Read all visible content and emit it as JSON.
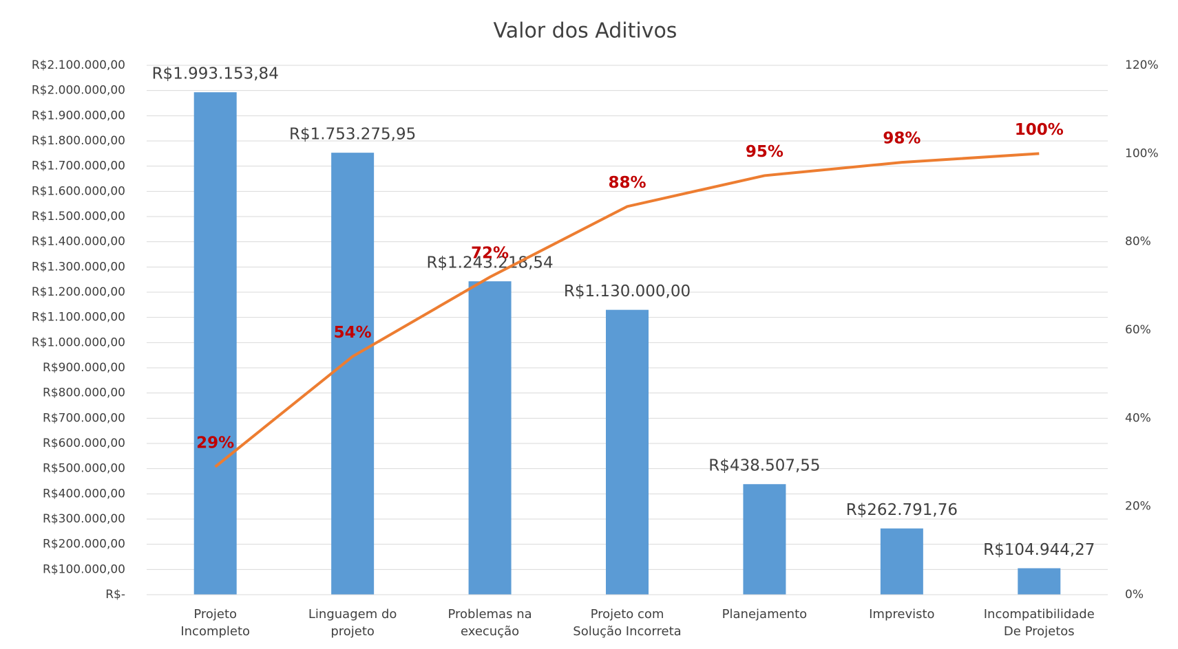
{
  "chart_data": {
    "type": "pareto",
    "title": "Valor dos Aditivos",
    "categories": [
      "Projeto\nIncompleto",
      "Linguagem do\nprojeto",
      "Problemas na\nexecução",
      "Projeto com\nSolução Incorreta",
      "Planejamento",
      "Imprevisto",
      "Incompatibilidade\nDe Projetos"
    ],
    "series": [
      {
        "type": "bar",
        "color": "#5b9bd5",
        "values": [
          1993153.84,
          1753275.95,
          1243218.54,
          1130000,
          438507.55,
          262791.76,
          104944.27
        ],
        "value_labels": [
          "R$1.993.153,84",
          "R$1.753.275,95",
          "R$1.243.218,54",
          "R$1.130.000,00",
          "R$438.507,55",
          "R$262.791,76",
          "R$104.944,27"
        ]
      },
      {
        "type": "line",
        "axis": "y2",
        "color": "#ed7d31",
        "values": [
          29,
          54,
          72,
          88,
          95,
          98,
          100
        ],
        "value_labels": [
          "29%",
          "54%",
          "72%",
          "88%",
          "95%",
          "98%",
          "100%"
        ]
      }
    ],
    "ylim": [
      0,
      2100000
    ],
    "yticks": [
      {
        "value": 0,
        "label": "R$-"
      },
      {
        "value": 100000,
        "label": "R$100.000,00"
      },
      {
        "value": 200000,
        "label": "R$200.000,00"
      },
      {
        "value": 300000,
        "label": "R$300.000,00"
      },
      {
        "value": 400000,
        "label": "R$400.000,00"
      },
      {
        "value": 500000,
        "label": "R$500.000,00"
      },
      {
        "value": 600000,
        "label": "R$600.000,00"
      },
      {
        "value": 700000,
        "label": "R$700.000,00"
      },
      {
        "value": 800000,
        "label": "R$800.000,00"
      },
      {
        "value": 900000,
        "label": "R$900.000,00"
      },
      {
        "value": 1000000,
        "label": "R$1.000.000,00"
      },
      {
        "value": 1100000,
        "label": "R$1.100.000,00"
      },
      {
        "value": 1200000,
        "label": "R$1.200.000,00"
      },
      {
        "value": 1300000,
        "label": "R$1.300.000,00"
      },
      {
        "value": 1400000,
        "label": "R$1.400.000,00"
      },
      {
        "value": 1500000,
        "label": "R$1.500.000,00"
      },
      {
        "value": 1600000,
        "label": "R$1.600.000,00"
      },
      {
        "value": 1700000,
        "label": "R$1.700.000,00"
      },
      {
        "value": 1800000,
        "label": "R$1.800.000,00"
      },
      {
        "value": 1900000,
        "label": "R$1.900.000,00"
      },
      {
        "value": 2000000,
        "label": "R$2.000.000,00"
      },
      {
        "value": 2100000,
        "label": "R$2.100.000,00"
      }
    ],
    "y2lim": [
      0,
      120
    ],
    "y2ticks": [
      {
        "value": 0,
        "label": "0%"
      },
      {
        "value": 20,
        "label": "20%"
      },
      {
        "value": 40,
        "label": "40%"
      },
      {
        "value": 60,
        "label": "60%"
      },
      {
        "value": 80,
        "label": "80%"
      },
      {
        "value": 100,
        "label": "100%"
      },
      {
        "value": 120,
        "label": "120%"
      }
    ],
    "grid": true,
    "line_label_color": "#c00000"
  }
}
